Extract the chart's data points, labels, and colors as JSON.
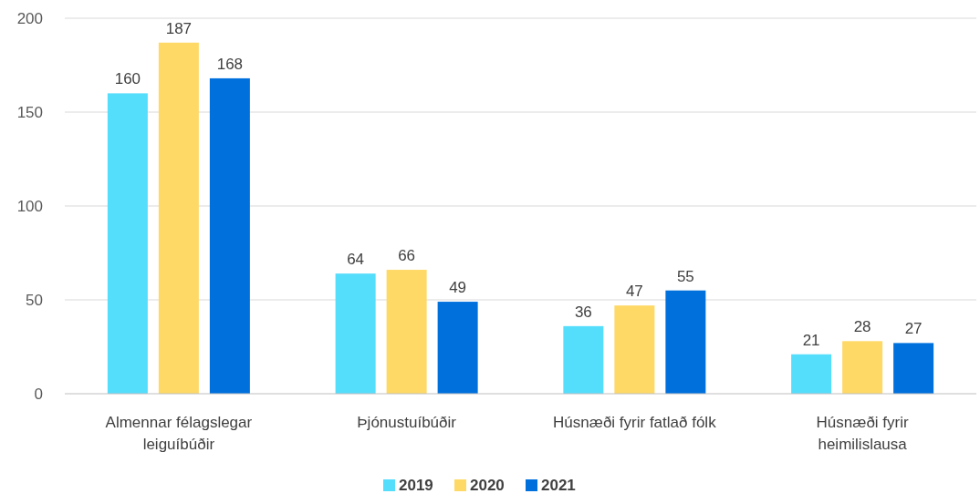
{
  "chart_data": {
    "type": "bar",
    "categories": [
      "Almennar félagslegar leiguíbúðir",
      "Þjónustuíbúðir",
      "Húsnæði fyrir fatlað fólk",
      "Húsnæði fyrir heimilislausa"
    ],
    "series": [
      {
        "name": "2019",
        "color": "#55ddfc",
        "values": [
          160,
          64,
          36,
          21
        ]
      },
      {
        "name": "2020",
        "color": "#ffd966",
        "values": [
          187,
          66,
          47,
          28
        ]
      },
      {
        "name": "2021",
        "color": "#0070dd",
        "values": [
          168,
          49,
          55,
          27
        ]
      }
    ],
    "ylim": [
      0,
      200
    ],
    "yticks": [
      0,
      50,
      100,
      150,
      200
    ],
    "grid": "y",
    "legend": "bottom",
    "data_labels": true
  }
}
